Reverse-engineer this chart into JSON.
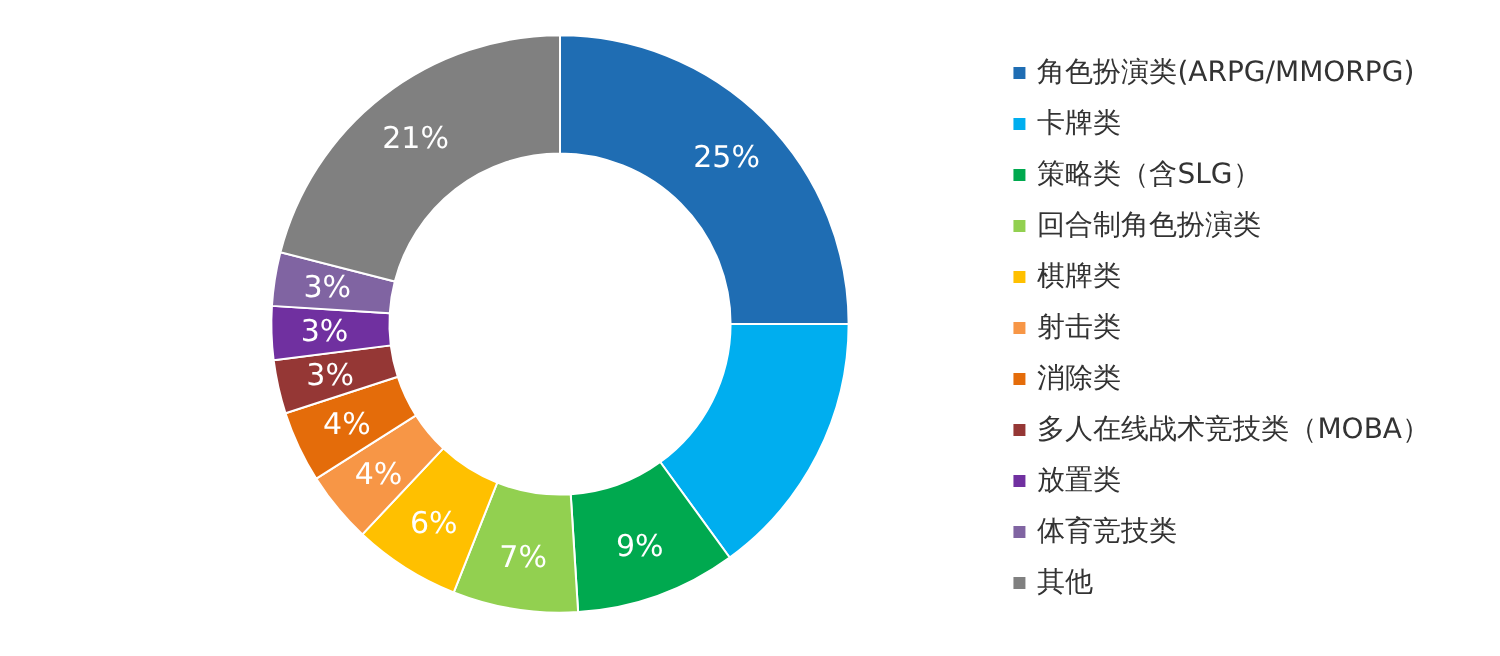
{
  "chart_data": {
    "type": "donut",
    "categories": [
      "角色扮演类(ARPG/MMORPG)",
      "卡牌类",
      "策略类（含SLG）",
      "回合制角色扮演类",
      "棋牌类",
      "射击类",
      "消除类",
      "多人在线战术竞技类（MOBA）",
      "放置类",
      "体育竞技类",
      "其他"
    ],
    "values": [
      25,
      15,
      9,
      7,
      6,
      4,
      4,
      3,
      3,
      3,
      21
    ],
    "colors": [
      "#1f6db3",
      "#00aeef",
      "#00a94f",
      "#92d050",
      "#ffc000",
      "#f79646",
      "#e46c0a",
      "#953735",
      "#7030a0",
      "#8064a2",
      "#808080"
    ],
    "value_labels": [
      "25%",
      null,
      "9%",
      "7%",
      "6%",
      "4%",
      "4%",
      "3%",
      "3%",
      "3%",
      "21%"
    ],
    "legend": "right"
  }
}
